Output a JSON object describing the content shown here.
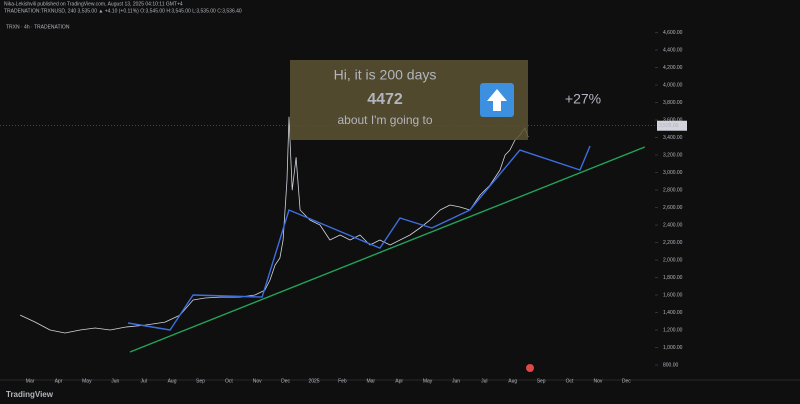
{
  "header": {
    "line1": "Nika-Lekishvili published on TradingView.com, August 13, 2025 04:10:11 GMT+4",
    "line2": "TRADENATION:TRXNUSD, 240  3,535.00 ▲ +4.10 (+0.11%) O:3,545.00 H:3,545.00 L:3,535.00 C:3,536.40",
    "symbol": "TRXN · 4h · TRADENATION"
  },
  "footer": {
    "brand": "TradingView"
  },
  "chart_data": {
    "type": "line",
    "annotations": {
      "line1": "Hi, it is 200 days",
      "line2": "4472",
      "line3": "about I'm going to",
      "change": "+27%"
    },
    "price_tag": "3,535.00",
    "current_price": 3535,
    "xlim": [
      -1.06,
      22.01
    ],
    "ylim": [
      629,
      4972
    ],
    "xticks": [
      {
        "value": 0,
        "label": "Mar"
      },
      {
        "value": 1,
        "label": "Apr"
      },
      {
        "value": 2,
        "label": "May"
      },
      {
        "value": 3,
        "label": "Jun"
      },
      {
        "value": 4,
        "label": "Jul"
      },
      {
        "value": 5,
        "label": "Aug"
      },
      {
        "value": 6,
        "label": "Sep"
      },
      {
        "value": 7,
        "label": "Oct"
      },
      {
        "value": 8,
        "label": "Nov"
      },
      {
        "value": 9,
        "label": "Dec"
      },
      {
        "value": 10,
        "label": "2025"
      },
      {
        "value": 11,
        "label": "Feb"
      },
      {
        "value": 12,
        "label": "Mar"
      },
      {
        "value": 13,
        "label": "Apr"
      },
      {
        "value": 14,
        "label": "May"
      },
      {
        "value": 15,
        "label": "Jun"
      },
      {
        "value": 16,
        "label": "Jul"
      },
      {
        "value": 17,
        "label": "Aug"
      },
      {
        "value": 18,
        "label": "Sep"
      },
      {
        "value": 19,
        "label": "Oct"
      },
      {
        "value": 20,
        "label": "Nov"
      },
      {
        "value": 21,
        "label": "Dec"
      }
    ],
    "yticks": [
      {
        "value": 800,
        "label": "800.00"
      },
      {
        "value": 1000,
        "label": "1,000.00"
      },
      {
        "value": 1200,
        "label": "1,200.00"
      },
      {
        "value": 1400,
        "label": "1,400.00"
      },
      {
        "value": 1600,
        "label": "1,600.00"
      },
      {
        "value": 1800,
        "label": "1,800.00"
      },
      {
        "value": 2000,
        "label": "2,000.00"
      },
      {
        "value": 2200,
        "label": "2,200.00"
      },
      {
        "value": 2400,
        "label": "2,400.00"
      },
      {
        "value": 2600,
        "label": "2,600.00"
      },
      {
        "value": 2800,
        "label": "2,800.00"
      },
      {
        "value": 3000,
        "label": "3,000.00"
      },
      {
        "value": 3200,
        "label": "3,200.00"
      },
      {
        "value": 3400,
        "label": "3,400.00"
      },
      {
        "value": 3600,
        "label": "3,600.00"
      },
      {
        "value": 3800,
        "label": "3,800.00"
      },
      {
        "value": 4000,
        "label": "4,000.00"
      },
      {
        "value": 4200,
        "label": "4,200.00"
      },
      {
        "value": 4400,
        "label": "4,400.00"
      },
      {
        "value": 4600,
        "label": "4,600.00"
      }
    ],
    "series": [
      {
        "color": "#d1d4dc",
        "x": [
          -0.35,
          0.18,
          0.7,
          1.23,
          1.76,
          2.29,
          2.82,
          3.35,
          4.05,
          4.75,
          5.28,
          5.74,
          6.16,
          6.69,
          7.39,
          7.92,
          8.27,
          8.45,
          8.63,
          8.8,
          8.91,
          9.05,
          9.12,
          9.23,
          9.37,
          9.51,
          9.86,
          10.21,
          10.56,
          10.92,
          11.27,
          11.62,
          11.97,
          12.32,
          12.68,
          13.03,
          13.38,
          13.73,
          14.08,
          14.44,
          14.79,
          15.14,
          15.49,
          15.85,
          16.2,
          16.55,
          16.73,
          16.9,
          17.08,
          17.25,
          17.43,
          17.54
        ],
        "values": [
          1371,
          1291,
          1200,
          1166,
          1200,
          1223,
          1200,
          1234,
          1257,
          1291,
          1371,
          1543,
          1566,
          1577,
          1577,
          1600,
          1657,
          1772,
          1943,
          2023,
          2229,
          2915,
          3635,
          2800,
          3172,
          2572,
          2457,
          2400,
          2229,
          2286,
          2229,
          2286,
          2172,
          2229,
          2172,
          2229,
          2286,
          2366,
          2457,
          2572,
          2629,
          2606,
          2572,
          2743,
          2857,
          3029,
          3200,
          3257,
          3372,
          3429,
          3509,
          3406
        ]
      },
      {
        "color": "#3d6ee0",
        "x": [
          3.45,
          4.93,
          5.74,
          8.17,
          9.12,
          12.32,
          13.03,
          14.15,
          15.49,
          17.25,
          19.37,
          19.72
        ],
        "values": [
          1280,
          1200,
          1600,
          1577,
          2572,
          2137,
          2480,
          2366,
          2572,
          3257,
          3029,
          3303
        ]
      },
      {
        "color": "#22a35a",
        "x": [
          3.52,
          21.65
        ],
        "values": [
          949,
          3292
        ]
      }
    ]
  }
}
